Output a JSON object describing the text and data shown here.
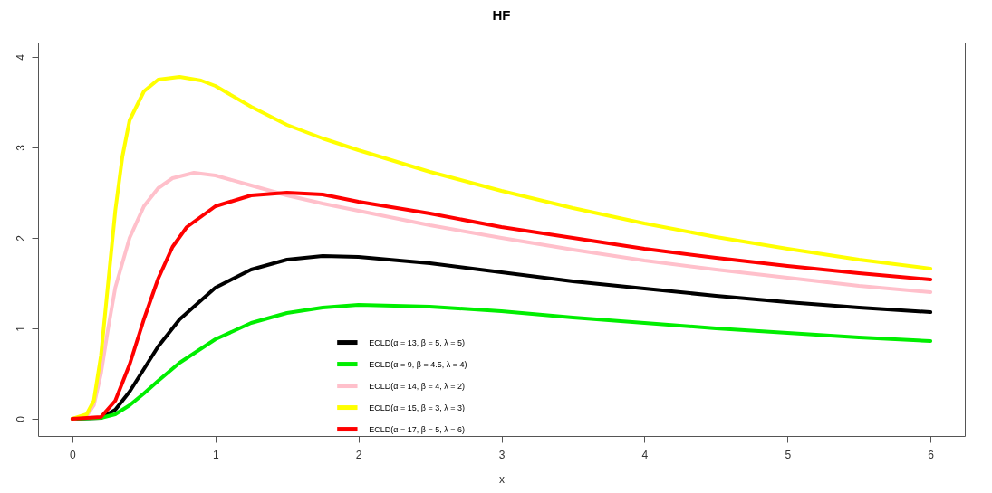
{
  "chart_data": {
    "type": "line",
    "title": "HF",
    "xlabel": "x",
    "xlim": [
      -0.24,
      6.24
    ],
    "xticks": [
      0,
      1,
      2,
      3,
      4,
      5,
      6
    ],
    "ylim": [
      -0.19,
      4.16
    ],
    "yticks": [
      0,
      1,
      2,
      3,
      4
    ],
    "grid": false,
    "legend": "bottom",
    "marker": "none",
    "line_style": "solid",
    "series": [
      {
        "name": "ECLD(α = 13, β = 5, λ = 5)",
        "color": "#000000",
        "x": [
          0,
          0.2,
          0.3,
          0.4,
          0.5,
          0.6,
          0.75,
          1.0,
          1.25,
          1.5,
          1.75,
          2,
          2.5,
          3,
          3.5,
          4,
          4.5,
          5,
          5.5,
          6
        ],
        "values": [
          0,
          0.01,
          0.1,
          0.3,
          0.55,
          0.8,
          1.1,
          1.45,
          1.65,
          1.76,
          1.8,
          1.79,
          1.72,
          1.62,
          1.52,
          1.44,
          1.36,
          1.29,
          1.23,
          1.18
        ]
      },
      {
        "name": "ECLD(α = 9, β = 4.5, λ = 4)",
        "color": "#00ee00",
        "x": [
          0,
          0.2,
          0.3,
          0.4,
          0.5,
          0.6,
          0.75,
          1.0,
          1.25,
          1.5,
          1.75,
          2,
          2.5,
          3,
          3.5,
          4,
          4.5,
          5,
          5.5,
          6
        ],
        "values": [
          0,
          0.01,
          0.05,
          0.15,
          0.28,
          0.42,
          0.62,
          0.88,
          1.06,
          1.17,
          1.23,
          1.26,
          1.24,
          1.19,
          1.12,
          1.06,
          1.0,
          0.95,
          0.9,
          0.86
        ]
      },
      {
        "name": "ECLD(α = 14, β = 4, λ = 2)",
        "color": "#ffc0cb",
        "x": [
          0,
          0.1,
          0.15,
          0.2,
          0.25,
          0.3,
          0.4,
          0.5,
          0.6,
          0.7,
          0.85,
          1.0,
          1.25,
          1.5,
          1.75,
          2,
          2.5,
          3,
          3.5,
          4,
          4.5,
          5,
          5.5,
          6
        ],
        "values": [
          0,
          0.03,
          0.15,
          0.5,
          1.0,
          1.45,
          2.0,
          2.35,
          2.55,
          2.66,
          2.72,
          2.69,
          2.58,
          2.47,
          2.38,
          2.3,
          2.14,
          2.0,
          1.87,
          1.75,
          1.65,
          1.56,
          1.47,
          1.4
        ]
      },
      {
        "name": "ECLD(α = 15, β = 3, λ = 3)",
        "color": "#ffff00",
        "x": [
          0,
          0.1,
          0.15,
          0.2,
          0.25,
          0.3,
          0.35,
          0.4,
          0.5,
          0.6,
          0.75,
          0.9,
          1.0,
          1.25,
          1.5,
          1.75,
          2,
          2.5,
          3,
          3.5,
          4,
          4.5,
          5,
          5.5,
          6
        ],
        "values": [
          0,
          0.05,
          0.2,
          0.7,
          1.5,
          2.3,
          2.9,
          3.3,
          3.62,
          3.75,
          3.78,
          3.74,
          3.68,
          3.45,
          3.25,
          3.1,
          2.97,
          2.73,
          2.52,
          2.33,
          2.16,
          2.01,
          1.88,
          1.76,
          1.66
        ]
      },
      {
        "name": "ECLD(α = 17, β = 5, λ = 6)",
        "color": "#ff0000",
        "x": [
          0,
          0.2,
          0.3,
          0.4,
          0.5,
          0.6,
          0.7,
          0.8,
          1.0,
          1.25,
          1.5,
          1.75,
          2,
          2.5,
          3,
          3.5,
          4,
          4.5,
          5,
          5.5,
          6
        ],
        "values": [
          0,
          0.02,
          0.2,
          0.6,
          1.1,
          1.55,
          1.9,
          2.12,
          2.35,
          2.47,
          2.5,
          2.48,
          2.4,
          2.27,
          2.12,
          2.0,
          1.88,
          1.78,
          1.69,
          1.61,
          1.54
        ]
      }
    ]
  }
}
